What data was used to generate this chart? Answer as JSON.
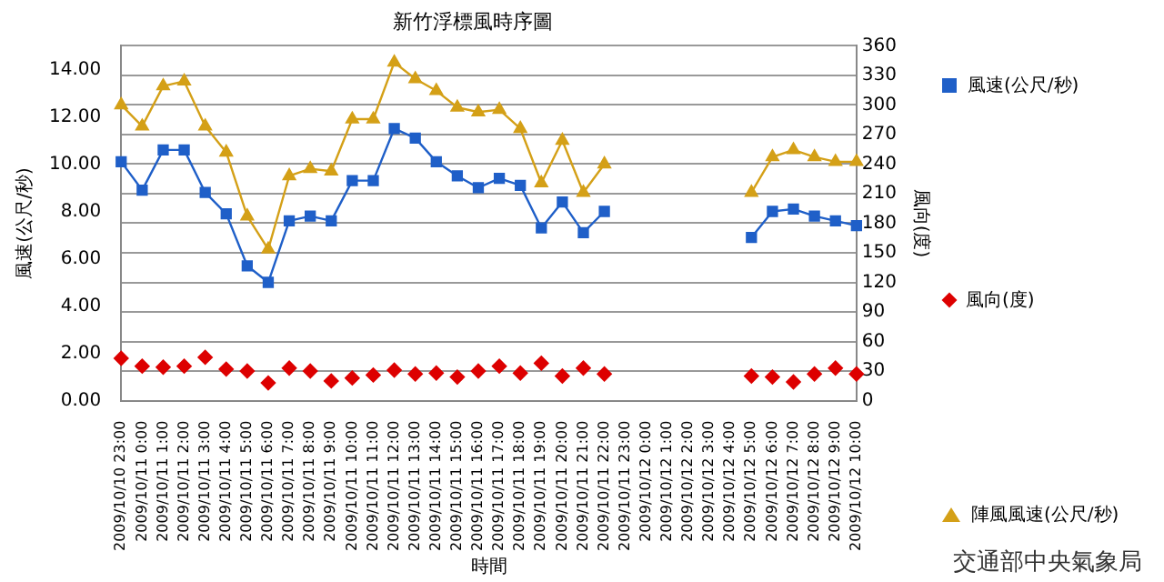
{
  "chart_data": {
    "type": "line",
    "title": "新竹浮標風時序圖",
    "xlabel": "時間",
    "ylabel": "風速(公尺/秒)",
    "y2label": "風向(度)",
    "categories": [
      "2009/10/10 23:00",
      "2009/10/11 0:00",
      "2009/10/11 1:00",
      "2009/10/11 2:00",
      "2009/10/11 3:00",
      "2009/10/11 4:00",
      "2009/10/11 5:00",
      "2009/10/11 6:00",
      "2009/10/11 7:00",
      "2009/10/11 8:00",
      "2009/10/11 9:00",
      "2009/10/11 10:00",
      "2009/10/11 11:00",
      "2009/10/11 12:00",
      "2009/10/11 13:00",
      "2009/10/11 14:00",
      "2009/10/11 15:00",
      "2009/10/11 16:00",
      "2009/10/11 17:00",
      "2009/10/11 18:00",
      "2009/10/11 19:00",
      "2009/10/11 20:00",
      "2009/10/11 21:00",
      "2009/10/11 22:00",
      "2009/10/11 23:00",
      "2009/10/12 0:00",
      "2009/10/12 1:00",
      "2009/10/12 2:00",
      "2009/10/12 3:00",
      "2009/10/12 4:00",
      "2009/10/12 5:00",
      "2009/10/12 6:00",
      "2009/10/12 7:00",
      "2009/10/12 8:00",
      "2009/10/12 9:00",
      "2009/10/12 10:00"
    ],
    "series": [
      {
        "name": "風速(公尺/秒)",
        "type": "line",
        "marker": "square",
        "color": "#1f5fc8",
        "values": [
          10.1,
          8.9,
          10.6,
          10.6,
          8.8,
          7.9,
          5.7,
          5.0,
          7.6,
          7.8,
          7.6,
          9.3,
          9.3,
          11.5,
          11.1,
          10.1,
          9.5,
          9.0,
          9.4,
          9.1,
          7.3,
          8.4,
          7.1,
          8.0,
          null,
          null,
          null,
          null,
          null,
          null,
          6.9,
          8.0,
          8.1,
          7.8,
          7.6,
          7.4
        ]
      },
      {
        "name": "風向(度)",
        "type": "scatter",
        "marker": "diamond",
        "axis": "y2",
        "color": "#dd0000",
        "values": [
          43,
          35,
          34,
          35,
          44,
          32,
          30,
          18,
          33,
          30,
          20,
          23,
          26,
          31,
          27,
          28,
          24,
          30,
          35,
          28,
          38,
          25,
          33,
          27,
          null,
          null,
          null,
          null,
          null,
          null,
          25,
          24,
          19,
          27,
          33,
          27
        ]
      },
      {
        "name": "陣風風速(公尺/秒)",
        "type": "line",
        "marker": "triangle",
        "color": "#d4a017",
        "values": [
          12.5,
          11.6,
          13.3,
          13.5,
          11.6,
          10.5,
          7.8,
          6.4,
          9.5,
          9.8,
          9.7,
          11.9,
          11.9,
          14.3,
          13.6,
          13.1,
          12.4,
          12.2,
          12.3,
          11.5,
          9.2,
          11.0,
          8.8,
          10.0,
          null,
          null,
          null,
          null,
          null,
          null,
          8.8,
          10.3,
          10.6,
          10.3,
          10.1,
          10.1
        ]
      }
    ],
    "ylim": [
      0,
      15
    ],
    "yticks": [
      {
        "value": 0,
        "label": "0.00"
      },
      {
        "value": 2,
        "label": "2.00"
      },
      {
        "value": 4,
        "label": "4.00"
      },
      {
        "value": 6,
        "label": "6.00"
      },
      {
        "value": 8,
        "label": "8.00"
      },
      {
        "value": 10,
        "label": "10.00"
      },
      {
        "value": 12,
        "label": "12.00"
      },
      {
        "value": 14,
        "label": "14.00"
      }
    ],
    "y2lim": [
      0,
      360
    ],
    "y2ticks": [
      0,
      30,
      60,
      90,
      120,
      150,
      180,
      210,
      240,
      270,
      300,
      330,
      360
    ],
    "grid": "y",
    "legend": "right",
    "line_style": "solid",
    "annotations": [
      "交通部中央氣象局"
    ]
  }
}
